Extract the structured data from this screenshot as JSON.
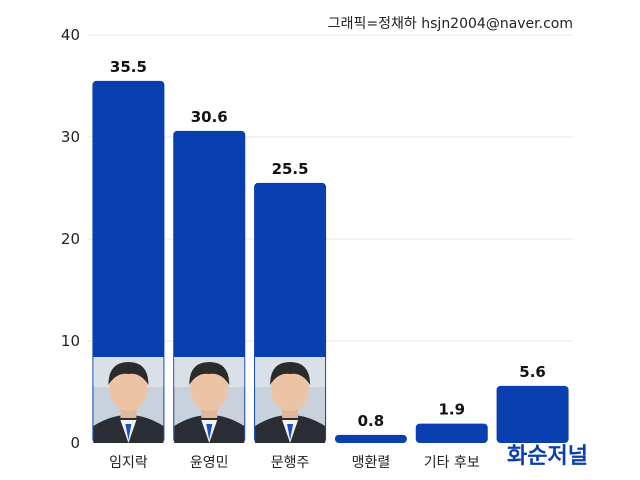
{
  "chart_data": {
    "type": "bar",
    "categories": [
      "임지락",
      "윤영민",
      "문행주",
      "맹환렬",
      "기타 후보",
      ""
    ],
    "values": [
      35.5,
      30.6,
      25.5,
      0.8,
      1.9,
      5.6
    ],
    "value_labels": [
      "35.5",
      "30.6",
      "25.5",
      "0.8",
      "1.9",
      "5.6"
    ],
    "yticks": [
      "0",
      "10",
      "20",
      "30",
      "40"
    ],
    "ylim": [
      0,
      40
    ],
    "grid": true,
    "bar_color": "#0a3fb0",
    "title": "",
    "xlabel": "",
    "ylabel": ""
  },
  "credit": "그래픽=정채하 hsjn2004@naver.com",
  "watermark": "화순저널",
  "photos": [
    {
      "category": "임지락",
      "icon": "person-photo-icon"
    },
    {
      "category": "윤영민",
      "icon": "person-photo-icon"
    },
    {
      "category": "문행주",
      "icon": "person-photo-icon"
    }
  ]
}
